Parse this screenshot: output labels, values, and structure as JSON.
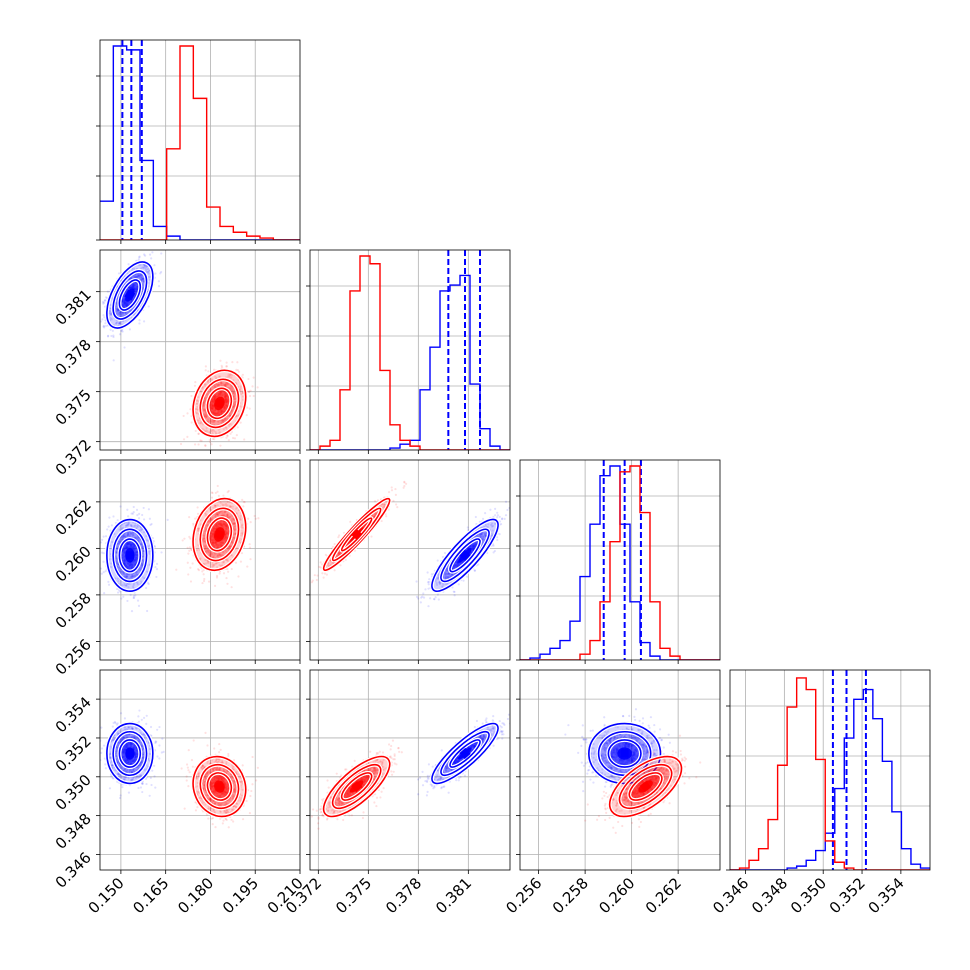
{
  "chart_data": {
    "type": "scatter",
    "title": "",
    "parameters": 4,
    "grid": true,
    "colors": {
      "blue": "#0000ff",
      "red": "#ff0000"
    },
    "axes": [
      {
        "range": [
          0.143,
          0.21
        ],
        "ticks": [
          0.15,
          0.165,
          0.18,
          0.195,
          0.21
        ],
        "tick_labels": [
          "0.150",
          "0.165",
          "0.180",
          "0.195",
          "0.210"
        ]
      },
      {
        "range": [
          0.3715,
          0.3835
        ],
        "ticks": [
          0.372,
          0.375,
          0.378,
          0.381
        ],
        "tick_labels": [
          "0.372",
          "0.375",
          "0.378",
          "0.381"
        ]
      },
      {
        "range": [
          0.2552,
          0.2638
        ],
        "ticks": [
          0.256,
          0.258,
          0.26,
          0.262
        ],
        "tick_labels": [
          "0.256",
          "0.258",
          "0.260",
          "0.262"
        ]
      },
      {
        "range": [
          0.3452,
          0.3555
        ],
        "ticks": [
          0.346,
          0.348,
          0.35,
          0.352,
          0.354
        ],
        "tick_labels": [
          "0.346",
          "0.348",
          "0.350",
          "0.352",
          "0.354"
        ]
      }
    ],
    "series": [
      {
        "color": "blue",
        "mean": [
          0.153,
          0.3808,
          0.2597,
          0.3512
        ],
        "sd": [
          0.0035,
          0.0009,
          0.0007,
          0.0007
        ],
        "correlations": {
          "0-1": 0.55,
          "0-2": 0.0,
          "0-3": 0.0,
          "1-2": 0.85,
          "1-3": 0.85,
          "2-3": 0.0
        },
        "quantile_lines": [
          [
            0.1505,
            0.1535,
            0.157
          ],
          [
            0.3798,
            0.3808,
            0.3817
          ],
          [
            0.2588,
            0.2597,
            0.2604
          ],
          [
            0.3505,
            0.3512,
            0.3522
          ]
        ],
        "histograms": [
          [
            0.2,
            1.0,
            0.98,
            0.41,
            0.07,
            0.02,
            0.0,
            0.0,
            0.0,
            0.0,
            0.0,
            0.0,
            0.0,
            0.0,
            0.0
          ],
          [
            0.0,
            0.0,
            0.0,
            0.0,
            0.0,
            0.0,
            0.0,
            0.0,
            0.01,
            0.03,
            0.05,
            0.31,
            0.53,
            0.82,
            0.85,
            0.9,
            0.34,
            0.11,
            0.02,
            0.0
          ],
          [
            0.0,
            0.01,
            0.03,
            0.06,
            0.1,
            0.2,
            0.43,
            0.7,
            0.95,
            1.0,
            0.7,
            0.3,
            0.09,
            0.02,
            0.0,
            0.0,
            0.0,
            0.0,
            0.0,
            0.0
          ],
          [
            0.0,
            0.0,
            0.0,
            0.0,
            0.0,
            0.0,
            0.01,
            0.02,
            0.05,
            0.1,
            0.19,
            0.42,
            0.68,
            0.88,
            0.93,
            0.78,
            0.56,
            0.3,
            0.11,
            0.03,
            0.01
          ]
        ]
      },
      {
        "color": "red",
        "mean": [
          0.183,
          0.3743,
          0.2606,
          0.3495
        ],
        "sd": [
          0.004,
          0.0009,
          0.0007,
          0.0007
        ],
        "correlations": {
          "0-1": 0.2,
          "0-2": 0.2,
          "0-3": -0.1,
          "1-2": 0.95,
          "1-3": 0.75,
          "2-3": 0.6
        },
        "histograms": [
          [
            0.0,
            0.0,
            0.0,
            0.0,
            0.0,
            0.47,
            1.0,
            0.73,
            0.17,
            0.07,
            0.04,
            0.02,
            0.01,
            0.0,
            0.0
          ],
          [
            0.0,
            0.02,
            0.05,
            0.31,
            0.82,
            1.0,
            0.96,
            0.41,
            0.13,
            0.05,
            0.02,
            0.0,
            0.0,
            0.0,
            0.0,
            0.0,
            0.0,
            0.0,
            0.0,
            0.0
          ],
          [
            0.0,
            0.0,
            0.0,
            0.0,
            0.0,
            0.0,
            0.03,
            0.1,
            0.3,
            0.61,
            0.97,
            1.0,
            0.76,
            0.3,
            0.06,
            0.02,
            0.0,
            0.0,
            0.0,
            0.0
          ],
          [
            0.0,
            0.01,
            0.05,
            0.11,
            0.26,
            0.54,
            0.84,
            0.99,
            0.93,
            0.57,
            0.15,
            0.04,
            0.01,
            0.0,
            0.0,
            0.0,
            0.0,
            0.0,
            0.0,
            0.0,
            0.0
          ]
        ]
      }
    ]
  }
}
